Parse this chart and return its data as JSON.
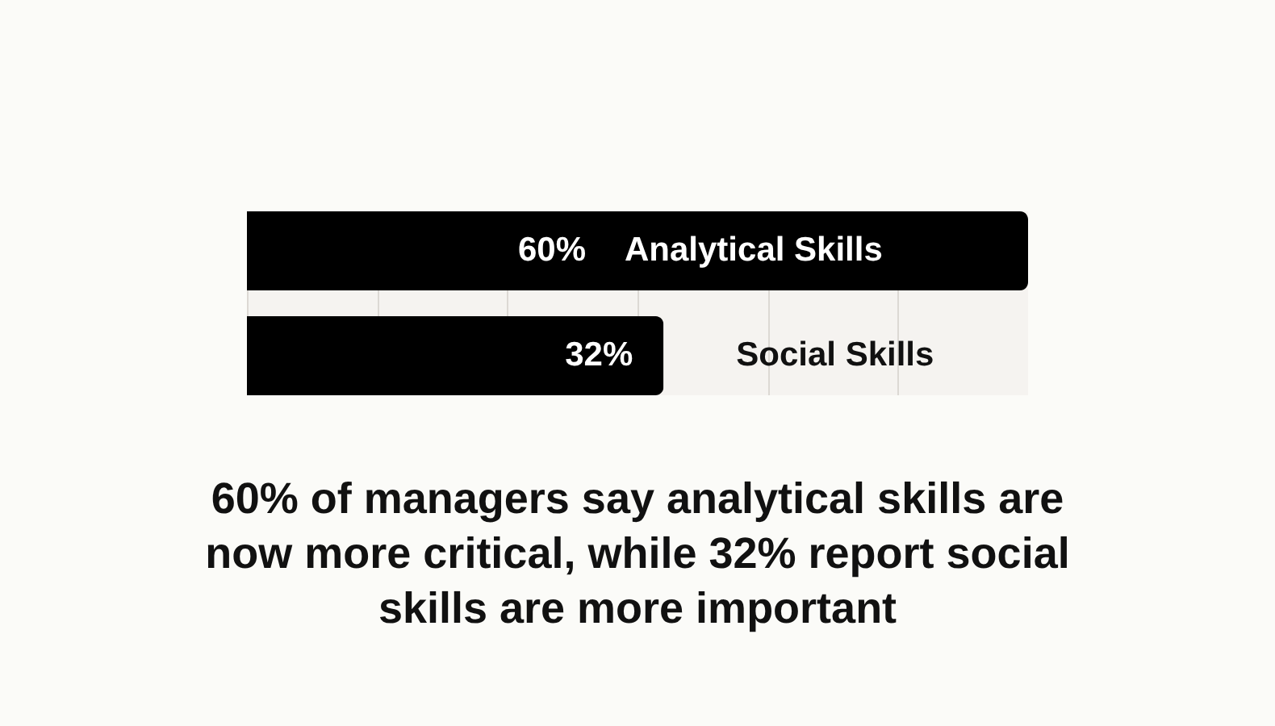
{
  "chart_data": {
    "type": "bar",
    "orientation": "horizontal",
    "categories": [
      "Analytical Skills",
      "Social Skills"
    ],
    "values": [
      60,
      32
    ],
    "value_labels": [
      "60%",
      "32%"
    ],
    "color": "#000000",
    "xlim": [
      0,
      60
    ],
    "xticks": [
      {
        "value": 0,
        "label": null
      },
      {
        "value": 10,
        "label": null
      },
      {
        "value": 20,
        "label": null
      },
      {
        "value": 30,
        "label": null
      },
      {
        "value": 40,
        "label": null
      },
      {
        "value": 50,
        "label": null
      },
      {
        "value": 60,
        "label": null
      }
    ],
    "grid": "x",
    "tick_labels": "y",
    "annotations": [
      "60% of managers say analytical skills are now more critical, while 32% report social skills are more important"
    ]
  }
}
